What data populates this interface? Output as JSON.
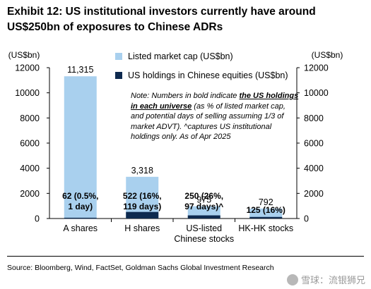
{
  "header": {
    "title": "Exhibit 12: US institutional investors currently have around US$250bn of exposures to Chinese ADRs"
  },
  "note": {
    "prefix": "Note: Numbers in bold indicate ",
    "bold": "the US holdings in each universe",
    "suffix": " (as % of listed market cap, and potential days of selling assuming 1/3 of market ADVT). ^captures US institutional holdings only. As of Apr 2025"
  },
  "source": "Source: Bloomberg, Wind, FactSet, Goldman Sachs Global Investment Research",
  "watermark": "雪球：流银狮兄",
  "colors": {
    "market_cap": "#a9d0ee",
    "holdings": "#0e2a4f",
    "grid": "#d9d9d9"
  },
  "chart_data": {
    "type": "bar",
    "categories": [
      "A shares",
      "H shares",
      "US-listed\nChinese stocks",
      "HK-HK stocks"
    ],
    "series": [
      {
        "name": "Listed market cap (US$bn)",
        "values": [
          11315,
          3318,
          975,
          792
        ]
      },
      {
        "name": "US holdings in Chinese equities (US$bn)",
        "values": [
          62,
          522,
          250,
          125
        ]
      }
    ],
    "bar_labels_market_cap": [
      "11,315",
      "3,318",
      "975",
      "792"
    ],
    "bar_labels_holdings": [
      "62 (0.5%,\n1 day)",
      "522 (16%,\n119 days)",
      "250 (26%,\n97 days)^",
      "125 (16%)"
    ],
    "y_left_label": "(US$bn)",
    "y_right_label": "(US$bn)",
    "ylim": [
      0,
      12000
    ],
    "yticks": [
      0,
      2000,
      4000,
      6000,
      8000,
      10000,
      12000
    ],
    "ytick_labels": [
      "0",
      "2000",
      "4000",
      "6000",
      "8000",
      "10000",
      "12000"
    ],
    "grid": false,
    "legend": "top-center",
    "title": "Exhibit 12: US institutional investors currently have around US$250bn of exposures to Chinese ADRs"
  }
}
